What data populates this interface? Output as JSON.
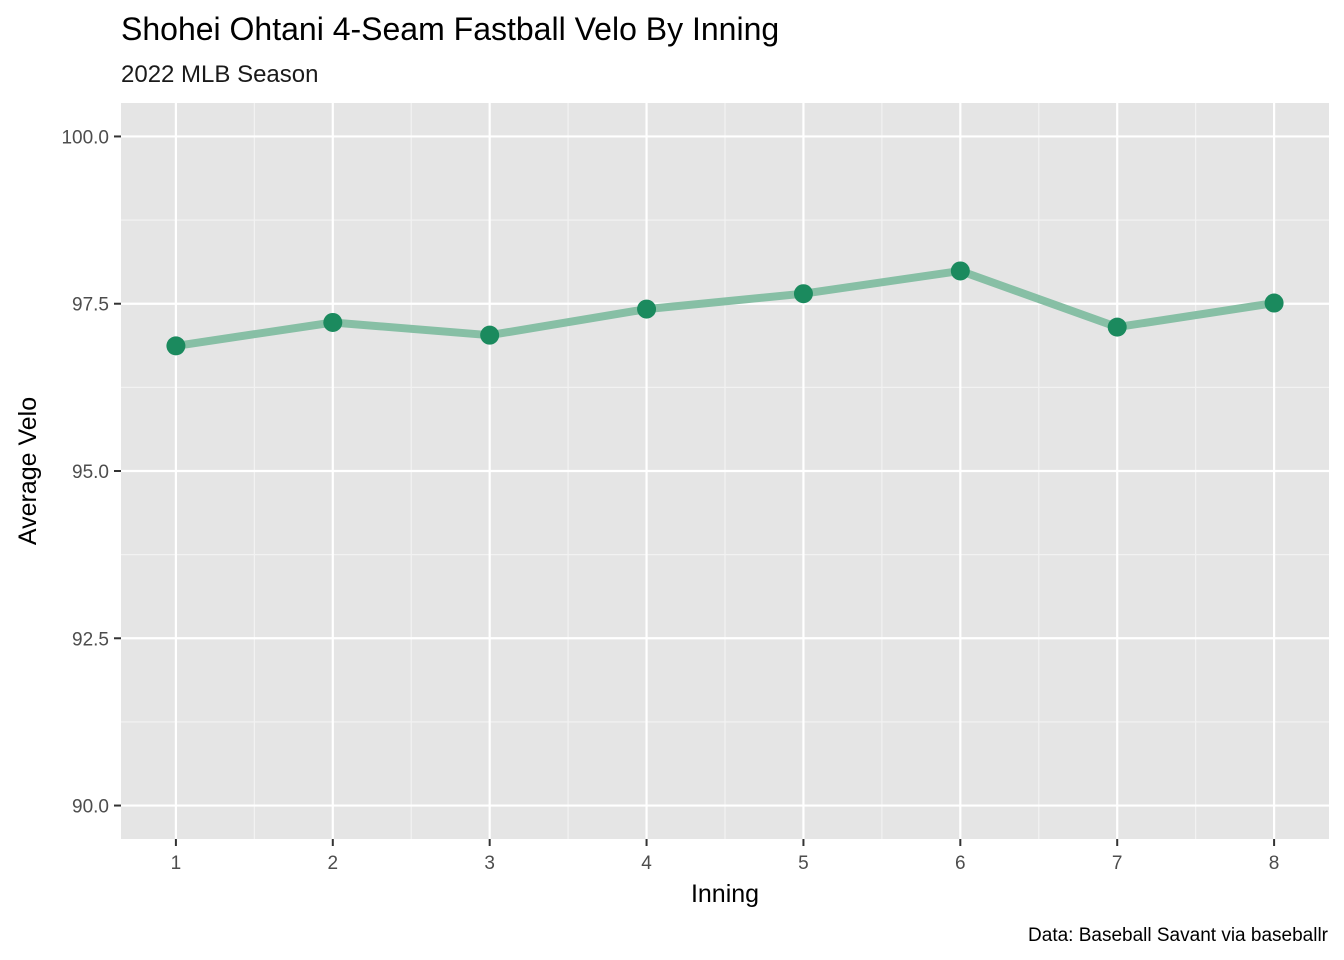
{
  "chart_data": {
    "type": "line",
    "title": "Shohei Ohtani 4-Seam Fastball Velo By Inning",
    "subtitle": "2022 MLB Season",
    "xlabel": "Inning",
    "ylabel": "Average Velo",
    "caption": "Data: Baseball Savant via baseballr",
    "x": [
      1,
      2,
      3,
      4,
      5,
      6,
      7,
      8
    ],
    "x_tick_labels": [
      "1",
      "2",
      "3",
      "4",
      "5",
      "6",
      "7",
      "8"
    ],
    "values": [
      96.87,
      97.22,
      97.03,
      97.42,
      97.65,
      97.99,
      97.15,
      97.51
    ],
    "ylim": [
      89.5,
      100.5
    ],
    "xlim": [
      0.65,
      8.35
    ],
    "y_ticks": [
      90.0,
      92.5,
      95.0,
      97.5,
      100.0
    ],
    "y_tick_labels": [
      "90.0",
      "92.5",
      "95.0",
      "97.5",
      "100.0"
    ],
    "grid": true,
    "colors": {
      "line": "#87bfa5",
      "point": "#1b8a5e",
      "panel": "#e5e5e5",
      "grid_major": "#ffffff",
      "grid_minor": "#f2f2f2"
    }
  }
}
